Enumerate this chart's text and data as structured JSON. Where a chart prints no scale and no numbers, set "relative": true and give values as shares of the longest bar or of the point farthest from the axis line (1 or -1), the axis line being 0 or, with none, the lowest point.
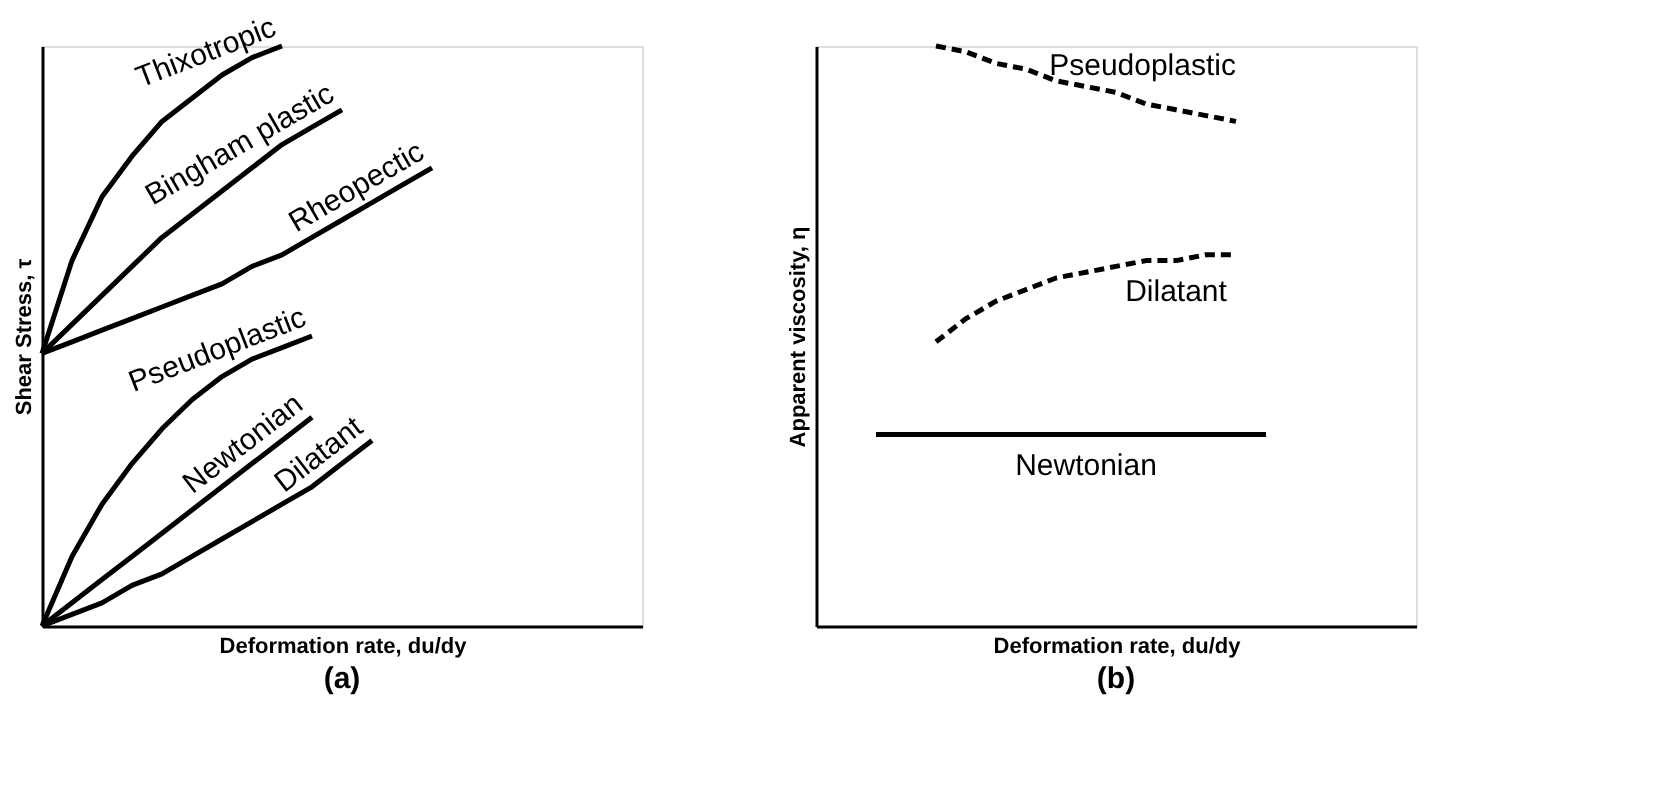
{
  "chart_data": [
    {
      "type": "line",
      "relative": true,
      "xlabel": "Deformation rate, du/dy",
      "ylabel": "Shear Stress, τ",
      "annotations": [
        "(a)"
      ],
      "tick_labels": false,
      "grid": false,
      "marker": "none",
      "categories": [
        null,
        null,
        null,
        null,
        null,
        null,
        null,
        null,
        null,
        null,
        null,
        null,
        null,
        null,
        null,
        null,
        null,
        null,
        null,
        null,
        null
      ],
      "series": [
        {
          "name": "Thixotropic",
          "color": "#000000",
          "line_style": "solid",
          "values": [
            0.47,
            0.63,
            0.74,
            0.81,
            0.87,
            0.91,
            0.95,
            0.98,
            1,
            null,
            null,
            null,
            null,
            null,
            null,
            null,
            null,
            null,
            null,
            null,
            null
          ]
        },
        {
          "name": "Bingham plastic",
          "color": "#000000",
          "line_style": "solid",
          "values": [
            0.47,
            0.52,
            0.57,
            0.62,
            0.67,
            0.71,
            0.75,
            0.79,
            0.83,
            0.86,
            0.89,
            null,
            null,
            null,
            null,
            null,
            null,
            null,
            null,
            null,
            null
          ]
        },
        {
          "name": "Rheopectic",
          "color": "#000000",
          "line_style": "solid",
          "values": [
            0.47,
            0.49,
            0.51,
            0.53,
            0.55,
            0.57,
            0.59,
            0.62,
            0.64,
            0.67,
            0.7,
            0.73,
            0.76,
            0.79,
            null,
            null,
            null,
            null,
            null,
            null,
            null
          ]
        },
        {
          "name": "Pseudoplastic",
          "color": "#000000",
          "line_style": "solid",
          "values": [
            0,
            0.12,
            0.21,
            0.28,
            0.34,
            0.39,
            0.43,
            0.46,
            0.48,
            0.5,
            null,
            null,
            null,
            null,
            null,
            null,
            null,
            null,
            null,
            null,
            null
          ]
        },
        {
          "name": "Newtonian",
          "color": "#000000",
          "line_style": "solid",
          "values": [
            0,
            0.04,
            0.08,
            0.12,
            0.16,
            0.2,
            0.24,
            0.28,
            0.32,
            0.36,
            null,
            null,
            null,
            null,
            null,
            null,
            null,
            null,
            null,
            null,
            null
          ]
        },
        {
          "name": "Dilatant",
          "color": "#000000",
          "line_style": "solid",
          "values": [
            0,
            0.02,
            0.04,
            0.07,
            0.09,
            0.12,
            0.15,
            0.18,
            0.21,
            0.24,
            0.28,
            0.32,
            null,
            null,
            null,
            null,
            null,
            null,
            null,
            null,
            null
          ]
        }
      ]
    },
    {
      "type": "line",
      "relative": true,
      "xlabel": "Deformation rate, du/dy",
      "ylabel": "Apparent viscosity, η",
      "annotations": [
        "(b)"
      ],
      "tick_labels": false,
      "grid": false,
      "marker": "none",
      "categories": [
        null,
        null,
        null,
        null,
        null,
        null,
        null,
        null,
        null,
        null,
        null,
        null,
        null,
        null,
        null,
        null,
        null,
        null,
        null,
        null,
        null
      ],
      "series": [
        {
          "name": "Pseudoplastic",
          "color": "#000000",
          "line_style": "dashed",
          "values": [
            null,
            null,
            null,
            null,
            1,
            0.99,
            0.97,
            0.96,
            0.94,
            0.93,
            0.92,
            0.9,
            0.89,
            0.88,
            0.87,
            null,
            null,
            null,
            null,
            null,
            null
          ]
        },
        {
          "name": "Dilatant",
          "color": "#000000",
          "line_style": "dashed",
          "values": [
            null,
            null,
            null,
            null,
            0.49,
            0.53,
            0.56,
            0.58,
            0.6,
            0.61,
            0.62,
            0.63,
            0.63,
            0.64,
            0.64,
            null,
            null,
            null,
            null,
            null,
            null
          ]
        },
        {
          "name": "Newtonian",
          "color": "#000000",
          "line_style": "solid",
          "values": [
            null,
            null,
            0.33,
            0.33,
            0.33,
            0.33,
            0.33,
            0.33,
            0.33,
            0.33,
            0.33,
            0.33,
            0.33,
            0.33,
            0.33,
            0.33,
            null,
            null,
            null,
            null,
            null
          ]
        }
      ]
    }
  ]
}
